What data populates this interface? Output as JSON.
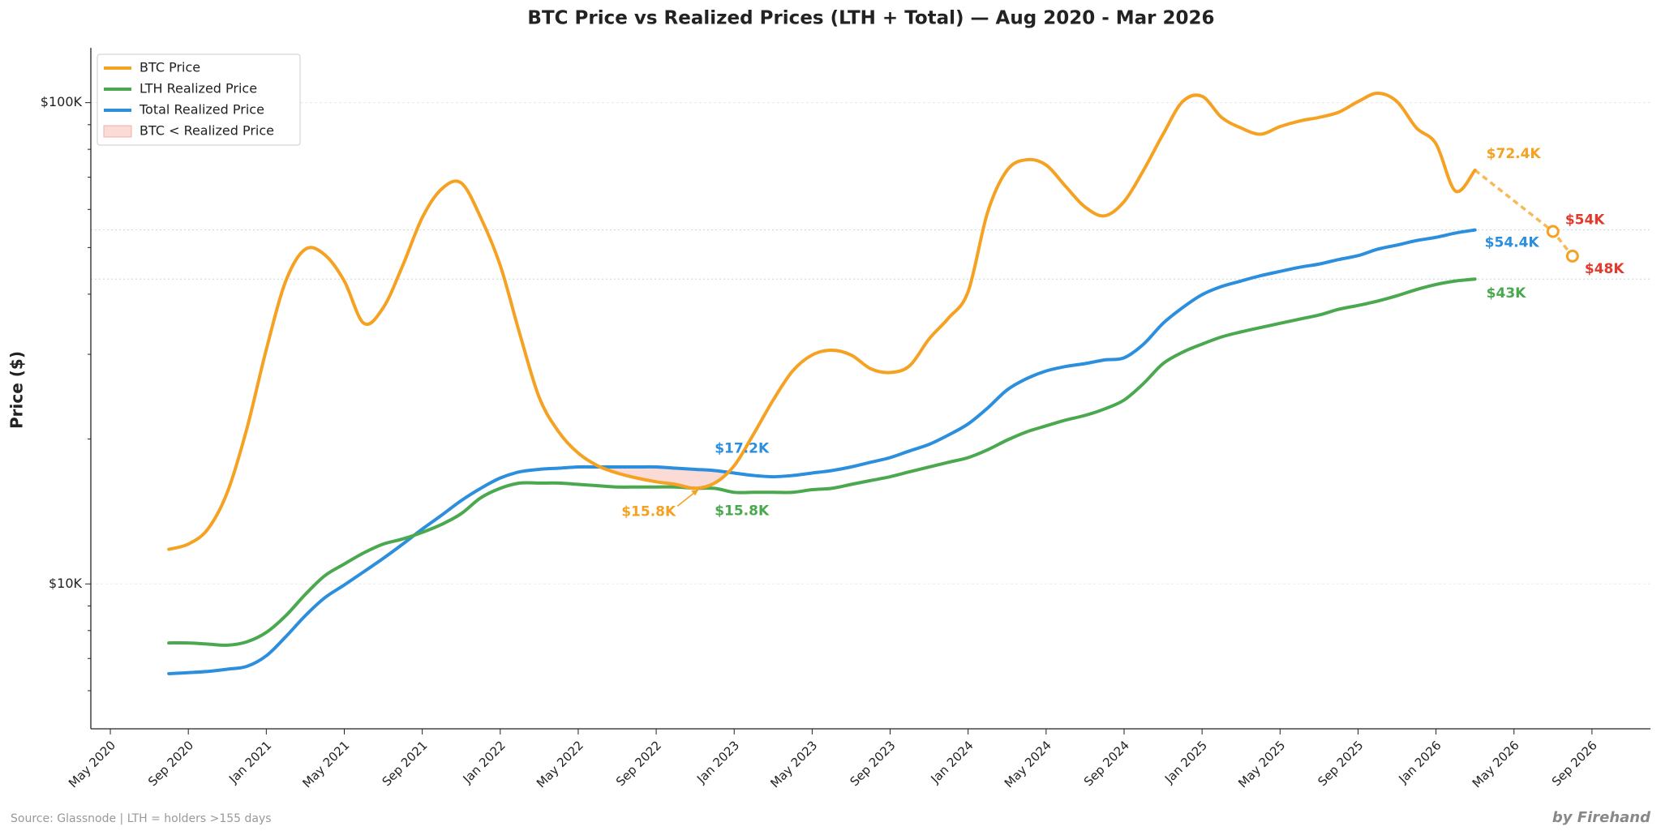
{
  "chart_data": {
    "type": "line",
    "title": "BTC Price vs Realized Prices (LTH + Total) — Aug 2020 - Mar 2026",
    "y_label": "Price ($)",
    "source": "Source: Glassnode | LTH = holders >155 days",
    "credit": "by Firehand",
    "log_scale": true,
    "grid": true,
    "legend": "upper left",
    "xlim": [
      "2020-04",
      "2026-12"
    ],
    "xticks": [
      {
        "value": "2020-05",
        "label": "May 2020"
      },
      {
        "value": "2020-09",
        "label": "Sep 2020"
      },
      {
        "value": "2021-01",
        "label": "Jan 2021"
      },
      {
        "value": "2021-05",
        "label": "May 2021"
      },
      {
        "value": "2021-09",
        "label": "Sep 2021"
      },
      {
        "value": "2022-01",
        "label": "Jan 2022"
      },
      {
        "value": "2022-05",
        "label": "May 2022"
      },
      {
        "value": "2022-09",
        "label": "Sep 2022"
      },
      {
        "value": "2023-01",
        "label": "Jan 2023"
      },
      {
        "value": "2023-05",
        "label": "May 2023"
      },
      {
        "value": "2023-09",
        "label": "Sep 2023"
      },
      {
        "value": "2024-01",
        "label": "Jan 2024"
      },
      {
        "value": "2024-05",
        "label": "May 2024"
      },
      {
        "value": "2024-09",
        "label": "Sep 2024"
      },
      {
        "value": "2025-01",
        "label": "Jan 2025"
      },
      {
        "value": "2025-05",
        "label": "May 2025"
      },
      {
        "value": "2025-09",
        "label": "Sep 2025"
      },
      {
        "value": "2026-01",
        "label": "Jan 2026"
      },
      {
        "value": "2026-05",
        "label": "May 2026"
      },
      {
        "value": "2026-09",
        "label": "Sep 2026"
      }
    ],
    "ylim": [
      5000,
      130000
    ],
    "yticks": [
      {
        "value": 10000,
        "label": "$10K"
      },
      {
        "value": 100000,
        "label": "$100K"
      }
    ],
    "yticks_minor": [
      6000,
      7000,
      8000,
      9000,
      20000,
      30000,
      40000,
      50000,
      60000,
      70000,
      80000,
      90000
    ],
    "reference_lines": [
      54400,
      43000
    ],
    "reference_line_color": "#b9dcd8",
    "x": [
      "2020-08",
      "2020-09",
      "2020-10",
      "2020-11",
      "2020-12",
      "2021-01",
      "2021-02",
      "2021-03",
      "2021-04",
      "2021-05",
      "2021-06",
      "2021-07",
      "2021-08",
      "2021-09",
      "2021-10",
      "2021-11",
      "2021-12",
      "2022-01",
      "2022-02",
      "2022-03",
      "2022-04",
      "2022-05",
      "2022-06",
      "2022-07",
      "2022-08",
      "2022-09",
      "2022-10",
      "2022-11",
      "2022-12",
      "2023-01",
      "2023-02",
      "2023-03",
      "2023-04",
      "2023-05",
      "2023-06",
      "2023-07",
      "2023-08",
      "2023-09",
      "2023-10",
      "2023-11",
      "2023-12",
      "2024-01",
      "2024-02",
      "2024-03",
      "2024-04",
      "2024-05",
      "2024-06",
      "2024-07",
      "2024-08",
      "2024-09",
      "2024-10",
      "2024-11",
      "2024-12",
      "2025-01",
      "2025-02",
      "2025-03",
      "2025-04",
      "2025-05",
      "2025-06",
      "2025-07",
      "2025-08",
      "2025-09",
      "2025-10",
      "2025-11",
      "2025-12",
      "2026-01",
      "2026-02",
      "2026-03"
    ],
    "series": [
      {
        "name": "BTC Price",
        "color": "#f5a122",
        "values": [
          11800,
          12100,
          13000,
          15500,
          21000,
          30700,
          42600,
          49600,
          48300,
          42600,
          34800,
          37500,
          45900,
          57700,
          66200,
          68100,
          57700,
          45900,
          33100,
          24400,
          20700,
          18700,
          17600,
          17000,
          16600,
          16300,
          16100,
          15800,
          16200,
          17600,
          20500,
          24100,
          27700,
          29900,
          30600,
          29900,
          28000,
          27500,
          28400,
          32300,
          35700,
          40500,
          59200,
          72400,
          76100,
          74200,
          67000,
          60700,
          58200,
          62300,
          72400,
          86000,
          100500,
          103100,
          93200,
          88600,
          86000,
          89200,
          91600,
          93200,
          95500,
          100500,
          104600,
          100500,
          88600,
          82100,
          65500,
          72400
        ]
      },
      {
        "name": "LTH Realized Price",
        "color": "#4aa84e",
        "values": [
          7540,
          7540,
          7500,
          7460,
          7580,
          7930,
          8590,
          9510,
          10400,
          11000,
          11600,
          12100,
          12400,
          12800,
          13300,
          14000,
          15100,
          15800,
          16200,
          16200,
          16200,
          16100,
          16000,
          15900,
          15900,
          15900,
          15900,
          15800,
          15800,
          15500,
          15500,
          15500,
          15500,
          15700,
          15800,
          16100,
          16400,
          16700,
          17100,
          17500,
          17900,
          18300,
          19000,
          19900,
          20700,
          21300,
          21900,
          22400,
          23100,
          24100,
          26100,
          28700,
          30300,
          31500,
          32600,
          33400,
          34100,
          34800,
          35500,
          36200,
          37200,
          37900,
          38700,
          39700,
          40900,
          41900,
          42600,
          43000
        ]
      },
      {
        "name": "Total Realized Price",
        "color": "#2b8fde",
        "values": [
          6510,
          6540,
          6580,
          6650,
          6740,
          7090,
          7770,
          8590,
          9360,
          9950,
          10600,
          11300,
          12100,
          13000,
          13900,
          14900,
          15800,
          16600,
          17100,
          17300,
          17400,
          17500,
          17500,
          17500,
          17500,
          17500,
          17400,
          17300,
          17200,
          17000,
          16800,
          16700,
          16800,
          17000,
          17200,
          17500,
          17900,
          18300,
          18900,
          19500,
          20400,
          21500,
          23200,
          25300,
          26700,
          27700,
          28300,
          28700,
          29200,
          29500,
          31500,
          34800,
          37500,
          39900,
          41500,
          42600,
          43700,
          44600,
          45500,
          46200,
          47200,
          48100,
          49600,
          50600,
          51700,
          52500,
          53600,
          54400
        ]
      }
    ],
    "shade": {
      "name": "BTC < Realized Price",
      "color": "#fadbd6"
    },
    "projection": {
      "x": [
        "2026-07",
        "2026-08"
      ],
      "values": [
        54000,
        48000
      ],
      "value_labels": [
        "$54K",
        "$48K"
      ],
      "color": "#e23b2e"
    },
    "annotations": [
      {
        "text": "$72.4K",
        "x": "2026-03",
        "value": 72400,
        "color": "#f5a122"
      },
      {
        "text": "$54.4K",
        "x": "2026-03",
        "value": 54400,
        "color": "#2b8fde"
      },
      {
        "text": "$43K",
        "x": "2026-03",
        "value": 43000,
        "color": "#4aa84e"
      },
      {
        "text": "$17.2K",
        "x": "2022-12",
        "value": 17200,
        "color": "#2b8fde"
      },
      {
        "text": "$15.8K",
        "x": "2022-12",
        "value": 15800,
        "color": "#4aa84e"
      },
      {
        "text": "$15.8K",
        "x": "2022-11",
        "value": 15800,
        "color": "#f5a122"
      }
    ]
  }
}
